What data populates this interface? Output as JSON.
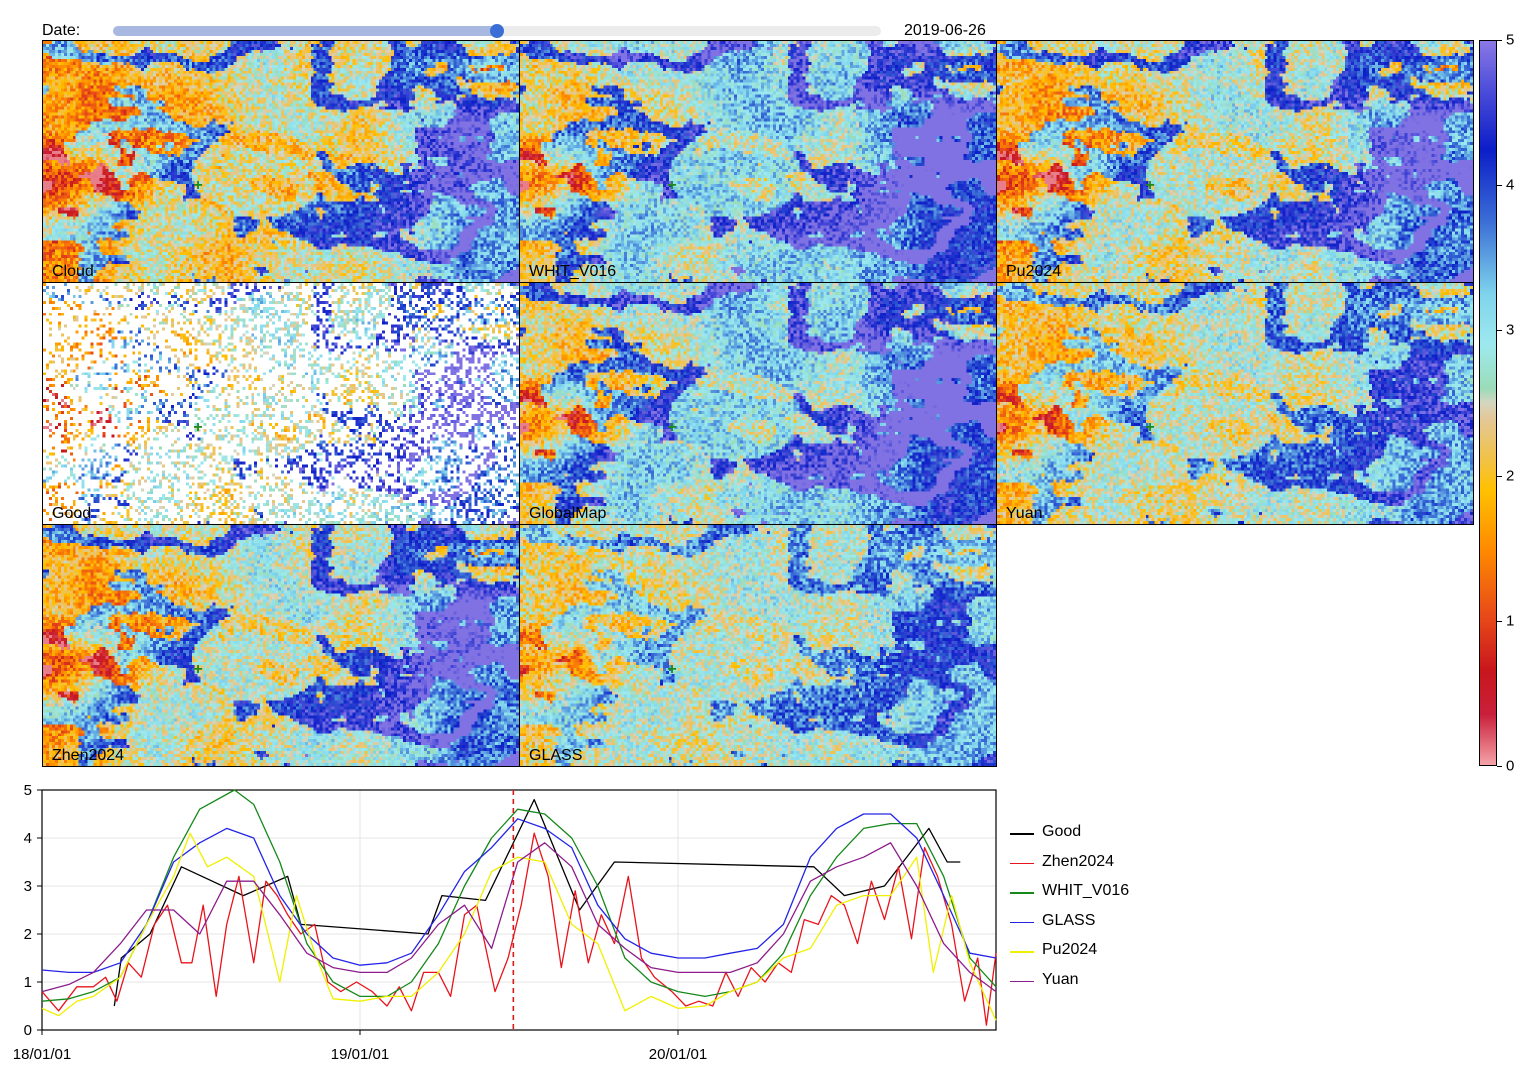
{
  "slider": {
    "label": "Date:",
    "value_text": "2019-06-26",
    "position": 0.5
  },
  "maps": [
    {
      "label": "Cloud",
      "seed": 11,
      "mode": "cloud"
    },
    {
      "label": "WHIT_V016",
      "seed": 23,
      "mode": "whit"
    },
    {
      "label": "Pu2024",
      "seed": 37,
      "mode": "pu"
    },
    {
      "label": "Good",
      "seed": 41,
      "mode": "good"
    },
    {
      "label": "GlobalMap",
      "seed": 53,
      "mode": "global"
    },
    {
      "label": "Yuan",
      "seed": 67,
      "mode": "yuan"
    },
    {
      "label": "Zhen2024",
      "seed": 71,
      "mode": "zhen"
    },
    {
      "label": "GLASS",
      "seed": 83,
      "mode": "glass"
    }
  ],
  "colorbar": {
    "ticks": [
      "0",
      "1",
      "2",
      "3",
      "4",
      "5"
    ],
    "range": [
      0,
      5
    ],
    "stops": [
      [
        0.0,
        "#f5a3a8"
      ],
      [
        0.07,
        "#c9203a"
      ],
      [
        0.13,
        "#c8161c"
      ],
      [
        0.2,
        "#e6461a"
      ],
      [
        0.3,
        "#ff8c00"
      ],
      [
        0.38,
        "#ffc100"
      ],
      [
        0.42,
        "#f2c243"
      ],
      [
        0.48,
        "#e2c89a"
      ],
      [
        0.5,
        "#d6d6c0"
      ],
      [
        0.52,
        "#9adcb8"
      ],
      [
        0.58,
        "#9ee9ee"
      ],
      [
        0.65,
        "#7fd4ec"
      ],
      [
        0.75,
        "#3c6fd6"
      ],
      [
        0.85,
        "#0c1ec8"
      ],
      [
        0.93,
        "#4a4cd8"
      ],
      [
        1.0,
        "#8a78e6"
      ]
    ]
  },
  "chart_data": {
    "type": "line",
    "xlabel": "",
    "ylabel": "",
    "ylim": [
      0,
      5
    ],
    "x_ticks": [
      "18/01/01",
      "19/01/01",
      "20/01/01"
    ],
    "y_ticks": [
      "0",
      "1",
      "2",
      "3",
      "4",
      "5"
    ],
    "current_date": "2019-06-26",
    "x_range": [
      "2018-01-01",
      "2020-12-31"
    ],
    "legend_position": "right",
    "grid": true,
    "series": [
      {
        "name": "Good",
        "color": "#000000",
        "points": [
          [
            "2018-03-25",
            0.5
          ],
          [
            "2018-04-02",
            1.5
          ],
          [
            "2018-05-05",
            2.0
          ],
          [
            "2018-06-10",
            3.4
          ],
          [
            "2018-08-20",
            2.8
          ],
          [
            "2018-10-10",
            3.2
          ],
          [
            "2018-10-25",
            2.2
          ],
          [
            "2019-03-20",
            2.0
          ],
          [
            "2019-04-05",
            2.8
          ],
          [
            "2019-05-25",
            2.7
          ],
          [
            "2019-07-20",
            4.8
          ],
          [
            "2019-09-10",
            2.5
          ],
          [
            "2019-10-20",
            3.5
          ],
          [
            "2020-06-05",
            3.4
          ],
          [
            "2020-07-10",
            2.8
          ],
          [
            "2020-08-25",
            3.0
          ],
          [
            "2020-10-15",
            4.2
          ],
          [
            "2020-11-05",
            3.5
          ],
          [
            "2020-11-20",
            3.5
          ]
        ]
      },
      {
        "name": "Zhen2024",
        "color": "#e8141c",
        "points": [
          [
            "2018-01-01",
            0.8
          ],
          [
            "2018-01-20",
            0.4
          ],
          [
            "2018-02-10",
            0.9
          ],
          [
            "2018-03-01",
            0.9
          ],
          [
            "2018-03-15",
            1.1
          ],
          [
            "2018-03-28",
            0.6
          ],
          [
            "2018-04-10",
            1.4
          ],
          [
            "2018-04-25",
            1.1
          ],
          [
            "2018-05-10",
            2.2
          ],
          [
            "2018-05-25",
            2.6
          ],
          [
            "2018-06-10",
            1.4
          ],
          [
            "2018-06-22",
            1.4
          ],
          [
            "2018-07-05",
            2.6
          ],
          [
            "2018-07-20",
            0.7
          ],
          [
            "2018-08-01",
            2.2
          ],
          [
            "2018-08-15",
            3.2
          ],
          [
            "2018-09-01",
            1.4
          ],
          [
            "2018-09-15",
            3.1
          ],
          [
            "2018-09-28",
            2.8
          ],
          [
            "2018-10-10",
            2.4
          ],
          [
            "2018-10-25",
            2.0
          ],
          [
            "2018-11-10",
            2.2
          ],
          [
            "2018-11-25",
            1.0
          ],
          [
            "2018-12-10",
            0.8
          ],
          [
            "2018-12-28",
            1.0
          ],
          [
            "2019-01-15",
            0.8
          ],
          [
            "2019-02-01",
            0.5
          ],
          [
            "2019-02-15",
            0.9
          ],
          [
            "2019-03-01",
            0.4
          ],
          [
            "2019-03-15",
            1.2
          ],
          [
            "2019-04-01",
            1.2
          ],
          [
            "2019-04-15",
            0.7
          ],
          [
            "2019-05-01",
            2.4
          ],
          [
            "2019-05-15",
            2.6
          ],
          [
            "2019-06-05",
            0.8
          ],
          [
            "2019-06-20",
            1.5
          ],
          [
            "2019-07-05",
            2.6
          ],
          [
            "2019-07-20",
            4.1
          ],
          [
            "2019-08-05",
            3.2
          ],
          [
            "2019-08-20",
            1.3
          ],
          [
            "2019-09-05",
            2.9
          ],
          [
            "2019-09-20",
            1.4
          ],
          [
            "2019-10-05",
            2.4
          ],
          [
            "2019-10-20",
            1.8
          ],
          [
            "2019-11-05",
            3.2
          ],
          [
            "2019-11-20",
            1.5
          ],
          [
            "2019-12-05",
            1.1
          ],
          [
            "2019-12-25",
            0.8
          ],
          [
            "2020-01-10",
            0.5
          ],
          [
            "2020-01-25",
            0.6
          ],
          [
            "2020-02-10",
            0.5
          ],
          [
            "2020-02-25",
            1.2
          ],
          [
            "2020-03-10",
            0.7
          ],
          [
            "2020-03-25",
            1.3
          ],
          [
            "2020-04-10",
            1.0
          ],
          [
            "2020-04-25",
            1.4
          ],
          [
            "2020-05-10",
            1.2
          ],
          [
            "2020-05-25",
            2.3
          ],
          [
            "2020-06-10",
            2.2
          ],
          [
            "2020-06-25",
            2.8
          ],
          [
            "2020-07-10",
            2.6
          ],
          [
            "2020-07-25",
            1.8
          ],
          [
            "2020-08-10",
            3.1
          ],
          [
            "2020-08-25",
            2.3
          ],
          [
            "2020-09-10",
            3.4
          ],
          [
            "2020-09-25",
            1.9
          ],
          [
            "2020-10-10",
            3.8
          ],
          [
            "2020-10-25",
            3.2
          ],
          [
            "2020-11-10",
            2.2
          ],
          [
            "2020-11-25",
            0.6
          ],
          [
            "2020-12-10",
            1.5
          ],
          [
            "2020-12-20",
            0.1
          ],
          [
            "2020-12-31",
            1.6
          ]
        ]
      },
      {
        "name": "WHIT_V016",
        "color": "#16881a",
        "points": [
          [
            "2018-01-01",
            0.6
          ],
          [
            "2018-02-01",
            0.65
          ],
          [
            "2018-03-01",
            0.8
          ],
          [
            "2018-04-01",
            1.1
          ],
          [
            "2018-05-01",
            2.2
          ],
          [
            "2018-06-01",
            3.6
          ],
          [
            "2018-07-01",
            4.6
          ],
          [
            "2018-08-10",
            5.0
          ],
          [
            "2018-09-01",
            4.7
          ],
          [
            "2018-10-01",
            3.5
          ],
          [
            "2018-11-01",
            1.8
          ],
          [
            "2018-12-01",
            1.0
          ],
          [
            "2019-01-01",
            0.7
          ],
          [
            "2019-02-01",
            0.7
          ],
          [
            "2019-03-01",
            1.0
          ],
          [
            "2019-04-01",
            1.8
          ],
          [
            "2019-05-01",
            3.0
          ],
          [
            "2019-06-01",
            4.0
          ],
          [
            "2019-07-01",
            4.6
          ],
          [
            "2019-08-01",
            4.5
          ],
          [
            "2019-09-01",
            4.0
          ],
          [
            "2019-10-01",
            3.0
          ],
          [
            "2019-11-01",
            1.5
          ],
          [
            "2019-12-01",
            1.0
          ],
          [
            "2020-01-01",
            0.8
          ],
          [
            "2020-02-01",
            0.7
          ],
          [
            "2020-03-01",
            0.8
          ],
          [
            "2020-04-01",
            1.0
          ],
          [
            "2020-05-01",
            1.6
          ],
          [
            "2020-06-01",
            2.8
          ],
          [
            "2020-07-01",
            3.6
          ],
          [
            "2020-08-01",
            4.2
          ],
          [
            "2020-09-01",
            4.3
          ],
          [
            "2020-10-01",
            4.3
          ],
          [
            "2020-11-01",
            3.2
          ],
          [
            "2020-12-01",
            1.5
          ],
          [
            "2020-12-31",
            0.9
          ]
        ]
      },
      {
        "name": "GLASS",
        "color": "#2424e8",
        "points": [
          [
            "2018-01-01",
            1.25
          ],
          [
            "2018-02-01",
            1.2
          ],
          [
            "2018-03-01",
            1.2
          ],
          [
            "2018-04-01",
            1.4
          ],
          [
            "2018-05-01",
            2.2
          ],
          [
            "2018-06-01",
            3.5
          ],
          [
            "2018-07-01",
            3.9
          ],
          [
            "2018-08-01",
            4.2
          ],
          [
            "2018-09-01",
            4.0
          ],
          [
            "2018-10-01",
            2.8
          ],
          [
            "2018-11-01",
            2.0
          ],
          [
            "2018-12-01",
            1.5
          ],
          [
            "2019-01-01",
            1.35
          ],
          [
            "2019-02-01",
            1.4
          ],
          [
            "2019-03-01",
            1.6
          ],
          [
            "2019-04-01",
            2.4
          ],
          [
            "2019-05-01",
            3.3
          ],
          [
            "2019-06-01",
            3.8
          ],
          [
            "2019-07-01",
            4.4
          ],
          [
            "2019-08-01",
            4.2
          ],
          [
            "2019-09-01",
            3.8
          ],
          [
            "2019-10-01",
            2.6
          ],
          [
            "2019-11-01",
            1.9
          ],
          [
            "2019-12-01",
            1.6
          ],
          [
            "2020-01-01",
            1.5
          ],
          [
            "2020-02-01",
            1.5
          ],
          [
            "2020-03-01",
            1.6
          ],
          [
            "2020-04-01",
            1.7
          ],
          [
            "2020-05-01",
            2.2
          ],
          [
            "2020-06-01",
            3.6
          ],
          [
            "2020-07-01",
            4.2
          ],
          [
            "2020-08-01",
            4.5
          ],
          [
            "2020-09-01",
            4.5
          ],
          [
            "2020-10-01",
            4.0
          ],
          [
            "2020-11-01",
            2.8
          ],
          [
            "2020-12-01",
            1.6
          ],
          [
            "2020-12-31",
            1.5
          ]
        ]
      },
      {
        "name": "Pu2024",
        "color": "#f0f000",
        "points": [
          [
            "2018-01-01",
            0.45
          ],
          [
            "2018-01-20",
            0.3
          ],
          [
            "2018-02-10",
            0.6
          ],
          [
            "2018-03-01",
            0.7
          ],
          [
            "2018-04-01",
            1.1
          ],
          [
            "2018-05-01",
            2.2
          ],
          [
            "2018-06-01",
            3.2
          ],
          [
            "2018-06-20",
            4.1
          ],
          [
            "2018-07-10",
            3.4
          ],
          [
            "2018-08-01",
            3.6
          ],
          [
            "2018-09-01",
            3.2
          ],
          [
            "2018-10-01",
            1.0
          ],
          [
            "2018-10-20",
            2.8
          ],
          [
            "2018-11-10",
            1.6
          ],
          [
            "2018-12-01",
            0.65
          ],
          [
            "2019-01-01",
            0.6
          ],
          [
            "2019-02-01",
            0.7
          ],
          [
            "2019-03-01",
            0.7
          ],
          [
            "2019-04-01",
            1.2
          ],
          [
            "2019-05-01",
            2.0
          ],
          [
            "2019-06-01",
            3.3
          ],
          [
            "2019-07-01",
            3.6
          ],
          [
            "2019-08-01",
            3.5
          ],
          [
            "2019-09-01",
            2.2
          ],
          [
            "2019-10-01",
            1.8
          ],
          [
            "2019-11-01",
            0.4
          ],
          [
            "2019-12-01",
            0.7
          ],
          [
            "2020-01-01",
            0.45
          ],
          [
            "2020-02-01",
            0.5
          ],
          [
            "2020-03-01",
            0.8
          ],
          [
            "2020-04-01",
            1.0
          ],
          [
            "2020-05-01",
            1.5
          ],
          [
            "2020-06-01",
            1.7
          ],
          [
            "2020-07-01",
            2.6
          ],
          [
            "2020-08-01",
            2.8
          ],
          [
            "2020-09-01",
            2.8
          ],
          [
            "2020-10-01",
            3.6
          ],
          [
            "2020-10-20",
            1.2
          ],
          [
            "2020-11-10",
            2.8
          ],
          [
            "2020-12-01",
            1.4
          ],
          [
            "2020-12-31",
            0.2
          ]
        ]
      },
      {
        "name": "Yuan",
        "color": "#8c1c8c",
        "points": [
          [
            "2018-01-01",
            0.8
          ],
          [
            "2018-02-01",
            0.95
          ],
          [
            "2018-03-01",
            1.2
          ],
          [
            "2018-04-01",
            1.8
          ],
          [
            "2018-05-01",
            2.5
          ],
          [
            "2018-06-01",
            2.5
          ],
          [
            "2018-07-01",
            2.0
          ],
          [
            "2018-08-01",
            3.1
          ],
          [
            "2018-09-01",
            3.1
          ],
          [
            "2018-10-01",
            2.4
          ],
          [
            "2018-11-01",
            1.6
          ],
          [
            "2018-12-01",
            1.3
          ],
          [
            "2019-01-01",
            1.2
          ],
          [
            "2019-02-01",
            1.2
          ],
          [
            "2019-03-01",
            1.5
          ],
          [
            "2019-04-01",
            2.2
          ],
          [
            "2019-05-01",
            2.6
          ],
          [
            "2019-06-01",
            1.7
          ],
          [
            "2019-07-01",
            3.5
          ],
          [
            "2019-08-01",
            3.9
          ],
          [
            "2019-09-01",
            3.4
          ],
          [
            "2019-10-01",
            2.2
          ],
          [
            "2019-11-01",
            1.7
          ],
          [
            "2019-12-01",
            1.3
          ],
          [
            "2020-01-01",
            1.2
          ],
          [
            "2020-02-01",
            1.2
          ],
          [
            "2020-03-01",
            1.2
          ],
          [
            "2020-04-01",
            1.4
          ],
          [
            "2020-05-01",
            2.0
          ],
          [
            "2020-06-01",
            3.1
          ],
          [
            "2020-07-01",
            3.4
          ],
          [
            "2020-08-01",
            3.6
          ],
          [
            "2020-09-01",
            3.9
          ],
          [
            "2020-10-01",
            3.0
          ],
          [
            "2020-11-01",
            1.8
          ],
          [
            "2020-12-01",
            1.2
          ],
          [
            "2020-12-31",
            0.8
          ]
        ]
      }
    ]
  }
}
